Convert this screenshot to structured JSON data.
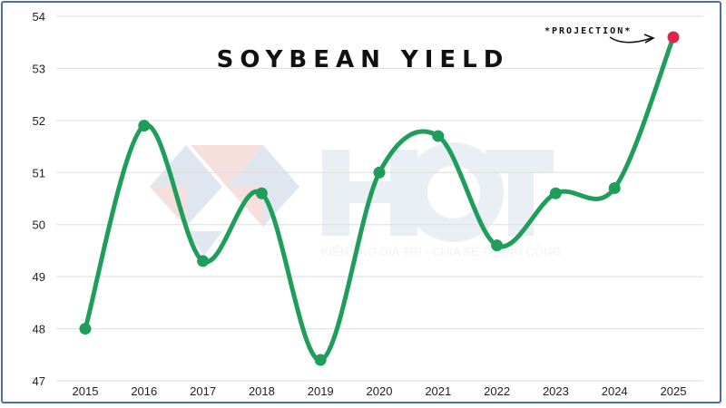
{
  "chart_data": {
    "type": "line",
    "title": "SOYBEAN YIELD",
    "xlabel": "",
    "ylabel": "",
    "categories": [
      "2015",
      "2016",
      "2017",
      "2018",
      "2019",
      "2020",
      "2021",
      "2022",
      "2023",
      "2024",
      "2025"
    ],
    "series": [
      {
        "values": [
          48.0,
          51.9,
          49.3,
          50.6,
          47.4,
          51.0,
          51.7,
          49.6,
          50.6,
          50.7,
          53.6
        ]
      }
    ],
    "ylim": [
      47,
      54
    ],
    "yticks": [
      47,
      48,
      49,
      50,
      51,
      52,
      53,
      54
    ],
    "grid": "horizontal",
    "line_color": "#1e9e5a",
    "highlight_color": "#e0234b",
    "highlight_index": 10,
    "annotation": "*PROJECTION*"
  },
  "watermark": {
    "brand": "HCT",
    "slogan": "KIẾN TẠO GIÁ TRỊ - CHIA SẺ THÀNH CÔNG"
  }
}
